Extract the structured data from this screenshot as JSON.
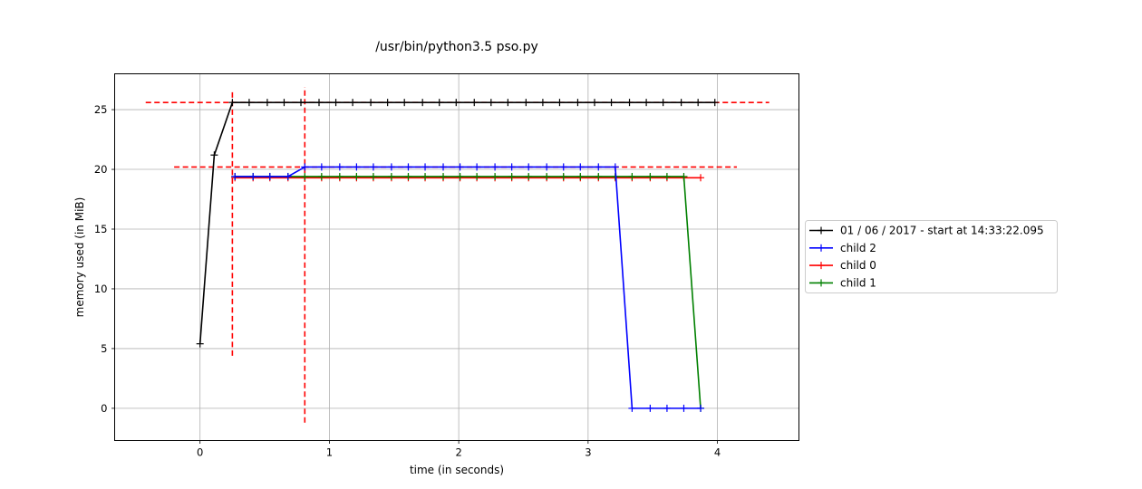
{
  "chart_data": {
    "type": "line",
    "title": "/usr/bin/python3.5 pso.py",
    "xlabel": "time (in seconds)",
    "ylabel": "memory used (in MiB)",
    "xlim": [
      -0.66,
      4.63
    ],
    "ylim": [
      -2.7,
      28.0
    ],
    "x_ticks": [
      0,
      1,
      2,
      3,
      4
    ],
    "y_ticks": [
      0,
      5,
      10,
      15,
      20,
      25
    ],
    "grid": true,
    "legend_position": "right, outside",
    "series": [
      {
        "name": "01 / 06 / 2017 - start at 14:33:22.095",
        "color": "#000000",
        "marker": "plus",
        "x": [
          0,
          0.11,
          0.25,
          0.38,
          0.52,
          0.65,
          0.78,
          0.92,
          1.05,
          1.18,
          1.32,
          1.45,
          1.58,
          1.72,
          1.85,
          1.98,
          2.12,
          2.25,
          2.38,
          2.52,
          2.65,
          2.78,
          2.92,
          3.05,
          3.18,
          3.32,
          3.45,
          3.58,
          3.72,
          3.85,
          3.98
        ],
        "y": [
          5.4,
          21.2,
          25.6,
          25.6,
          25.6,
          25.6,
          25.6,
          25.6,
          25.6,
          25.6,
          25.6,
          25.6,
          25.6,
          25.6,
          25.6,
          25.6,
          25.6,
          25.6,
          25.6,
          25.6,
          25.6,
          25.6,
          25.6,
          25.6,
          25.6,
          25.6,
          25.6,
          25.6,
          25.6,
          25.6,
          25.6
        ]
      },
      {
        "name": "child 2",
        "color": "#0000ff",
        "marker": "plus",
        "x": [
          0.27,
          0.41,
          0.54,
          0.68,
          0.81,
          0.94,
          1.08,
          1.21,
          1.34,
          1.48,
          1.61,
          1.74,
          1.88,
          2.01,
          2.14,
          2.28,
          2.41,
          2.54,
          2.68,
          2.81,
          2.94,
          3.08,
          3.21,
          3.34,
          3.48,
          3.61,
          3.74,
          3.87
        ],
        "y": [
          19.4,
          19.4,
          19.4,
          19.4,
          20.2,
          20.2,
          20.2,
          20.2,
          20.2,
          20.2,
          20.2,
          20.2,
          20.2,
          20.2,
          20.2,
          20.2,
          20.2,
          20.2,
          20.2,
          20.2,
          20.2,
          20.2,
          20.2,
          0,
          0,
          0,
          0,
          0
        ]
      },
      {
        "name": "child 0",
        "color": "#ff0000",
        "marker": "plus",
        "x": [
          0.27,
          0.41,
          0.54,
          0.68,
          0.81,
          0.94,
          1.08,
          1.21,
          1.34,
          1.48,
          1.61,
          1.74,
          1.88,
          2.01,
          2.14,
          2.28,
          2.41,
          2.54,
          2.68,
          2.81,
          2.94,
          3.08,
          3.21,
          3.34,
          3.48,
          3.61,
          3.74,
          3.87
        ],
        "y": [
          19.3,
          19.3,
          19.3,
          19.3,
          19.3,
          19.3,
          19.3,
          19.3,
          19.3,
          19.3,
          19.3,
          19.3,
          19.3,
          19.3,
          19.3,
          19.3,
          19.3,
          19.3,
          19.3,
          19.3,
          19.3,
          19.3,
          19.3,
          19.3,
          19.3,
          19.3,
          19.3,
          19.3
        ]
      },
      {
        "name": "child 1",
        "color": "#008000",
        "marker": "plus",
        "x": [
          0.27,
          0.41,
          0.54,
          0.68,
          0.81,
          0.94,
          1.08,
          1.21,
          1.34,
          1.48,
          1.61,
          1.74,
          1.88,
          2.01,
          2.14,
          2.28,
          2.41,
          2.54,
          2.68,
          2.81,
          2.94,
          3.08,
          3.21,
          3.34,
          3.48,
          3.61,
          3.74,
          3.87
        ],
        "y": [
          19.4,
          19.4,
          19.4,
          19.4,
          19.4,
          19.4,
          19.4,
          19.4,
          19.4,
          19.4,
          19.4,
          19.4,
          19.4,
          19.4,
          19.4,
          19.4,
          19.4,
          19.4,
          19.4,
          19.4,
          19.4,
          19.4,
          19.4,
          19.4,
          19.4,
          19.4,
          19.4,
          0
        ]
      }
    ],
    "reference_lines": [
      {
        "orientation": "horizontal",
        "value": 25.6,
        "from": -0.42,
        "to": 4.4,
        "color": "#ff0000",
        "style": "dashed"
      },
      {
        "orientation": "horizontal",
        "value": 20.2,
        "from": -0.2,
        "to": 4.15,
        "color": "#ff0000",
        "style": "dashed"
      },
      {
        "orientation": "vertical",
        "value": 0.25,
        "from": 4.4,
        "to": 26.6,
        "color": "#ff0000",
        "style": "dashed"
      },
      {
        "orientation": "vertical",
        "value": 0.81,
        "from": -1.2,
        "to": 26.9,
        "color": "#ff0000",
        "style": "dashed"
      }
    ]
  }
}
